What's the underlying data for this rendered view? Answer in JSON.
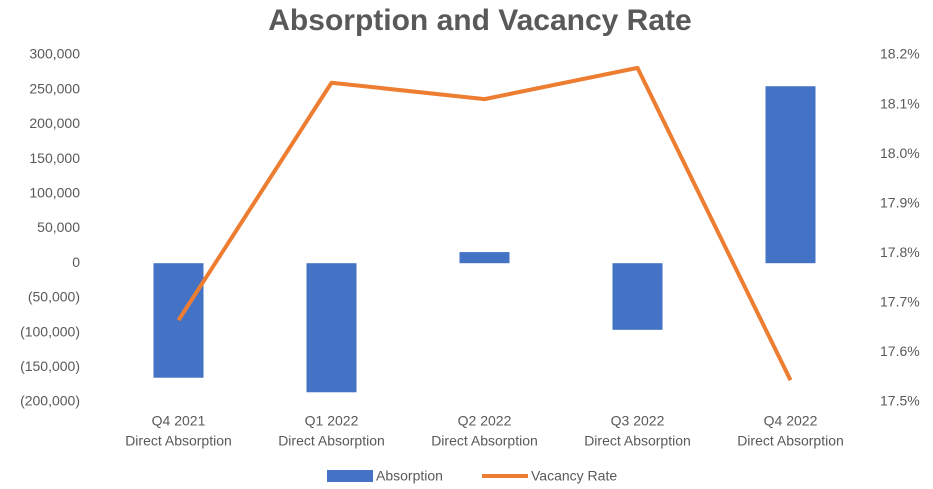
{
  "chart_data": {
    "type": "bar_line",
    "title": "Absorption and Vacancy Rate",
    "categories": [
      [
        "Q4 2021",
        "Direct Absorption"
      ],
      [
        "Q1 2022",
        "Direct Absorption"
      ],
      [
        "Q2 2022",
        "Direct Absorption"
      ],
      [
        "Q3 2022",
        "Direct Absorption"
      ],
      [
        "Q4 2022",
        "Direct Absorption"
      ]
    ],
    "series": [
      {
        "name": "Absorption",
        "type": "bar",
        "color": "#4472c4",
        "values": [
          -165000,
          -186000,
          16000,
          -96000,
          255000
        ]
      },
      {
        "name": "Vacancy Rate",
        "type": "line",
        "color": "#ed7d31",
        "axis": "y2",
        "values": [
          17.665,
          18.144,
          18.111,
          18.174,
          17.544
        ]
      }
    ],
    "ylim": [
      -200000,
      300000
    ],
    "yticks": [
      {
        "value": -200000,
        "label": "(200,000)"
      },
      {
        "value": -150000,
        "label": "(150,000)"
      },
      {
        "value": -100000,
        "label": "(100,000)"
      },
      {
        "value": -50000,
        "label": "(50,000)"
      },
      0,
      {
        "value": 50000,
        "label": "50,000"
      },
      {
        "value": 100000,
        "label": "100,000"
      },
      {
        "value": 150000,
        "label": "150,000"
      },
      {
        "value": 200000,
        "label": "200,000"
      },
      {
        "value": 250000,
        "label": "250,000"
      },
      {
        "value": 300000,
        "label": "300,000"
      }
    ],
    "y2lim": [
      17.5,
      18.2
    ],
    "y2ticks": [
      {
        "value": 17.5,
        "label": "17.5%"
      },
      {
        "value": 17.6,
        "label": "17.6%"
      },
      {
        "value": 17.7,
        "label": "17.7%"
      },
      {
        "value": 17.8,
        "label": "17.8%"
      },
      {
        "value": 17.9,
        "label": "17.9%"
      },
      {
        "value": 18.0,
        "label": "18.0%"
      },
      {
        "value": 18.1,
        "label": "18.1%"
      },
      {
        "value": 18.2,
        "label": "18.2%"
      }
    ],
    "legend": "bottom"
  }
}
